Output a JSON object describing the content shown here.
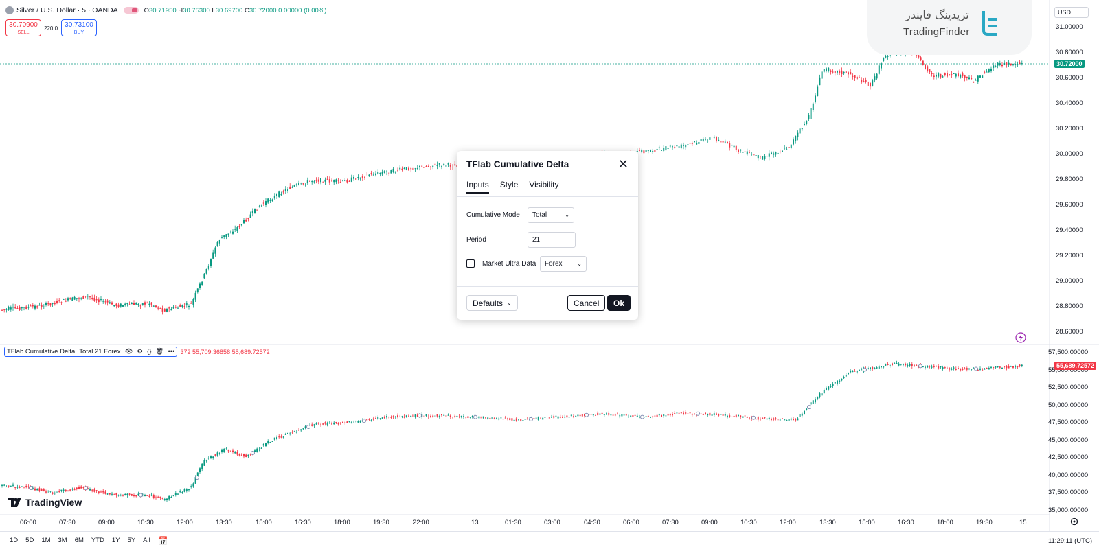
{
  "header": {
    "symbol": "Silver / U.S. Dollar · 5 · OANDA",
    "ohlc": {
      "o_label": "O",
      "o": "30.71950",
      "h_label": "H",
      "h": "30.75300",
      "l_label": "L",
      "l": "30.69700",
      "c_label": "C",
      "c": "30.72000",
      "change": "0.00000 (0.00%)"
    },
    "sell_price": "30.70900",
    "sell_label": "SELL",
    "buy_price": "30.73100",
    "buy_label": "BUY",
    "spread": "220.0"
  },
  "watermark": {
    "persian": "تریدینگ فایندر",
    "english": "TradingFinder"
  },
  "currency": "USD",
  "price_axis": {
    "labels": [
      "31.00000",
      "30.80000",
      "30.60000",
      "30.40000",
      "30.20000",
      "30.00000",
      "29.80000",
      "29.60000",
      "29.40000",
      "29.20000",
      "29.00000",
      "28.80000",
      "28.60000"
    ],
    "last_price": "30.72000",
    "colors": {
      "up": "#089981",
      "down": "#f23645",
      "last_price_bg": "#089981"
    }
  },
  "indicator_axis": {
    "labels": [
      "57,500.00000",
      "55,000.00000",
      "52,500.00000",
      "50,000.00000",
      "47,500.00000",
      "45,000.00000",
      "42,500.00000",
      "40,000.00000",
      "37,500.00000",
      "35,000.00000"
    ],
    "last_value": "55,689.72572",
    "last_value_bg": "#f23645"
  },
  "indicator_legend": {
    "name": "TFlab Cumulative Delta",
    "params": "Total 21 Forex",
    "values_prefix": "372",
    "value_1": "55,709.36858",
    "value_2": "55,689.72572"
  },
  "time_axis": [
    "06:00",
    "07:30",
    "09:00",
    "10:30",
    "12:00",
    "13:30",
    "15:00",
    "16:30",
    "18:00",
    "19:30",
    "22:00",
    "13",
    "01:30",
    "03:00",
    "04:30",
    "06:00",
    "07:30",
    "09:00",
    "10:30",
    "12:00",
    "13:30",
    "15:00",
    "16:30",
    "18:00",
    "19:30",
    "15"
  ],
  "bottom_bar": {
    "ranges": [
      "1D",
      "5D",
      "1M",
      "3M",
      "6M",
      "YTD",
      "1Y",
      "5Y",
      "All"
    ],
    "clock": "11:29:11 (UTC)"
  },
  "branding": "TradingView",
  "dialog": {
    "title": "TFlab Cumulative Delta",
    "tabs": [
      "Inputs",
      "Style",
      "Visibility"
    ],
    "cumulative_mode_label": "Cumulative Mode",
    "cumulative_mode_value": "Total",
    "period_label": "Period",
    "period_value": "21",
    "market_ultra_label": "Market Ultra Data",
    "market_ultra_value": "Forex",
    "defaults_label": "Defaults",
    "cancel_label": "Cancel",
    "ok_label": "Ok"
  }
}
